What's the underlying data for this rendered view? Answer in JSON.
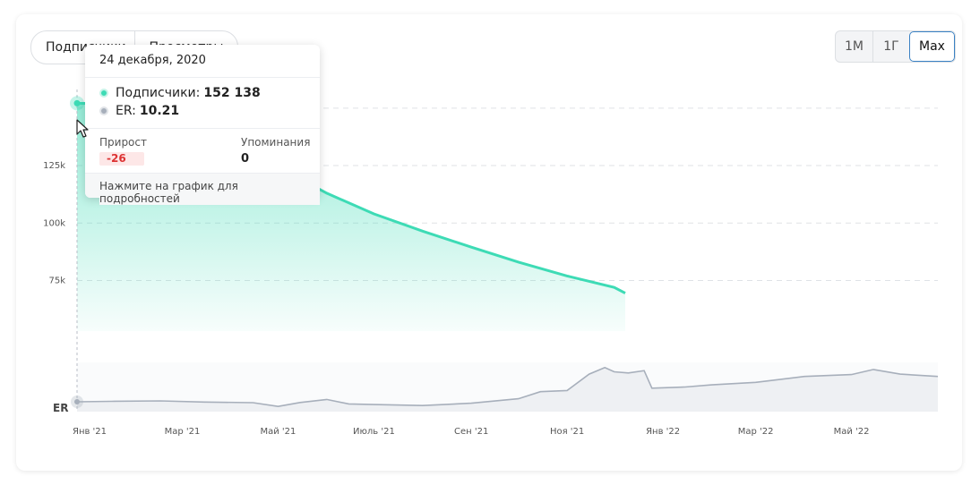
{
  "toggle": {
    "options": [
      "Подписчики",
      "Просмотры"
    ],
    "active_index": 0
  },
  "range_buttons": [
    {
      "label": "1М"
    },
    {
      "label": "1Г"
    },
    {
      "label": "Max",
      "active": true
    }
  ],
  "tooltip": {
    "date": "24 декабря, 2020",
    "subscribers_label": "Подписчики:",
    "subscribers_value": "152 138",
    "er_label": "ER:",
    "er_value": "10.21",
    "growth_label": "Прирост",
    "growth_value": "-26",
    "mentions_label": "Упоминания",
    "mentions_value": "0",
    "hint": "Нажмите на график для подробностей"
  },
  "colors": {
    "subscribers": "#3ddbb5",
    "er": "#a7afbb",
    "accent": "#3b82c4",
    "negative": "#dd3333"
  },
  "chart_data": {
    "type": "line",
    "ylim": [
      53000,
      155000
    ],
    "yticks": [
      {
        "value": 75000,
        "label": "75k"
      },
      {
        "value": 100000,
        "label": "100k"
      },
      {
        "value": 125000,
        "label": "125k"
      }
    ],
    "grid": true,
    "x_start": "2020-12-24",
    "x_end": "2022-06-25",
    "x_ticks": [
      {
        "date": "2021-01-01",
        "label": "Янв '21"
      },
      {
        "date": "2021-03-01",
        "label": "Мар '21"
      },
      {
        "date": "2021-05-01",
        "label": "Май '21"
      },
      {
        "date": "2021-07-01",
        "label": "Июль '21"
      },
      {
        "date": "2021-09-01",
        "label": "Сен '21"
      },
      {
        "date": "2021-11-01",
        "label": "Ноя '21"
      },
      {
        "date": "2022-01-01",
        "label": "Янв '22"
      },
      {
        "date": "2022-03-01",
        "label": "Мар '22"
      },
      {
        "date": "2022-05-01",
        "label": "Май '22"
      }
    ],
    "series": [
      {
        "name": "Подписчики",
        "x": [
          "2020-12-24",
          "2021-01-05",
          "2021-02-01",
          "2021-03-01",
          "2021-04-01",
          "2021-05-01",
          "2021-06-01",
          "2021-07-01",
          "2021-08-01",
          "2021-09-01",
          "2021-10-01",
          "2021-11-01",
          "2021-12-01",
          "2021-12-08"
        ],
        "y": [
          152138,
          152000,
          146000,
          138000,
          131000,
          124500,
          113000,
          104000,
          96500,
          89500,
          83000,
          77000,
          72000,
          69500
        ]
      },
      {
        "name": "ER",
        "panel_label": "ER",
        "x": [
          "2020-12-24",
          "2021-01-15",
          "2021-02-15",
          "2021-03-15",
          "2021-04-15",
          "2021-05-01",
          "2021-05-15",
          "2021-06-01",
          "2021-06-15",
          "2021-07-01",
          "2021-08-01",
          "2021-09-01",
          "2021-10-01",
          "2021-10-15",
          "2021-11-01",
          "2021-11-15",
          "2021-11-25",
          "2021-12-01",
          "2021-12-10",
          "2021-12-20",
          "2021-12-25",
          "2022-01-15",
          "2022-02-01",
          "2022-03-01",
          "2022-04-01",
          "2022-05-01",
          "2022-05-15",
          "2022-06-01",
          "2022-06-25"
        ],
        "y": [
          10.2,
          10.4,
          10.6,
          10.1,
          9.8,
          8.2,
          9.9,
          11.2,
          9.3,
          9.0,
          8.6,
          9.6,
          11.5,
          14.5,
          15.0,
          22.0,
          24.8,
          23.0,
          22.5,
          23.5,
          16.0,
          16.5,
          17.4,
          18.5,
          21.0,
          21.8,
          24.0,
          22.0,
          21.0
        ]
      }
    ]
  }
}
